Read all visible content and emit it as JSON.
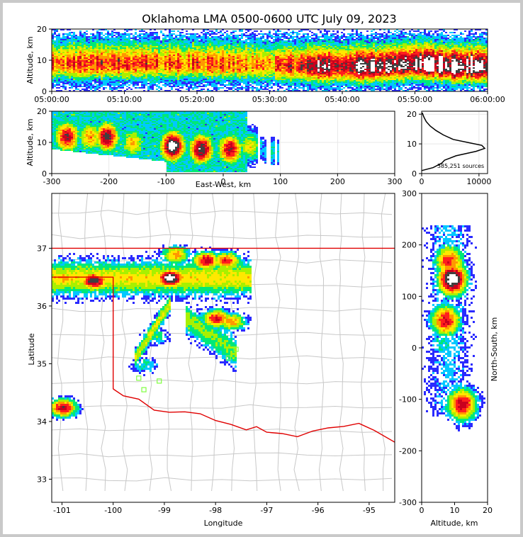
{
  "title": "Oklahoma LMA 0500-0600 UTC July 09, 2023",
  "colors": {
    "density": [
      "#6a00d8",
      "#2a2aff",
      "#00c8ff",
      "#00e878",
      "#a8f000",
      "#ffe800",
      "#ff9800",
      "#ff1e1e",
      "#c8001e",
      "#404040",
      "#ffffff"
    ],
    "border": "#e00000",
    "county": "#c8c8c8",
    "station": "#7fff3f"
  },
  "chart_data": [
    {
      "id": "time-height",
      "type": "heatmap",
      "xlabel": "",
      "ylabel": "Altitude, km",
      "xticks": [
        "05:00:00",
        "05:10:00",
        "05:20:00",
        "05:30:00",
        "05:40:00",
        "05:50:00",
        "06:00:00"
      ],
      "xlim_minutes": [
        0,
        60
      ],
      "yticks": [
        0,
        10,
        20
      ],
      "ylim": [
        0,
        20
      ],
      "density_profile": [
        {
          "t": 0,
          "center_km": 9,
          "intensity": 0.6
        },
        {
          "t": 10,
          "center_km": 9,
          "intensity": 0.65
        },
        {
          "t": 20,
          "center_km": 9,
          "intensity": 0.6
        },
        {
          "t": 30,
          "center_km": 8.5,
          "intensity": 0.55
        },
        {
          "t": 37,
          "center_km": 8,
          "intensity": 0.8
        },
        {
          "t": 45,
          "center_km": 8,
          "intensity": 0.85
        },
        {
          "t": 50,
          "center_km": 9,
          "intensity": 0.85
        },
        {
          "t": 55,
          "center_km": 8,
          "intensity": 0.95
        },
        {
          "t": 60,
          "center_km": 8,
          "intensity": 0.9
        }
      ]
    },
    {
      "id": "east-west-height",
      "type": "heatmap",
      "xlabel": "East-West, km",
      "ylabel": "Altitude, km",
      "xticks": [
        -300,
        -200,
        -100,
        0,
        100,
        200,
        300
      ],
      "xlim": [
        -300,
        300
      ],
      "yticks": [
        0,
        10,
        20
      ],
      "ylim": [
        0,
        20
      ],
      "cells": [
        {
          "x": -275,
          "z": 12,
          "intensity": 0.8
        },
        {
          "x": -235,
          "z": 12,
          "intensity": 0.6
        },
        {
          "x": -205,
          "z": 12,
          "intensity": 0.85
        },
        {
          "x": -160,
          "z": 10,
          "intensity": 0.55
        },
        {
          "x": -90,
          "z": 9,
          "intensity": 1.0
        },
        {
          "x": -40,
          "z": 8,
          "intensity": 0.9
        },
        {
          "x": 10,
          "z": 8,
          "intensity": 0.8
        },
        {
          "x": 45,
          "z": 9,
          "intensity": 0.5
        },
        {
          "x": 85,
          "z": 7,
          "intensity": 0.3
        }
      ]
    },
    {
      "id": "altitude-histogram",
      "type": "line",
      "xlabel": "",
      "ylabel": "",
      "xticks": [
        0,
        10000
      ],
      "xlim": [
        0,
        11500
      ],
      "yticks": [
        0,
        10,
        20
      ],
      "ylim": [
        0,
        21
      ],
      "annotation": "385,251 sources",
      "points": [
        [
          0,
          1
        ],
        [
          2000,
          2
        ],
        [
          3500,
          3.5
        ],
        [
          4000,
          4.5
        ],
        [
          6000,
          6
        ],
        [
          9500,
          7.5
        ],
        [
          11000,
          8.5
        ],
        [
          10500,
          9.5
        ],
        [
          8000,
          10.5
        ],
        [
          5500,
          11.5
        ],
        [
          3800,
          13
        ],
        [
          2500,
          14.5
        ],
        [
          1500,
          16
        ],
        [
          800,
          17.5
        ],
        [
          400,
          19
        ],
        [
          100,
          20.5
        ]
      ]
    },
    {
      "id": "plan-view",
      "type": "heatmap",
      "xlabel": "Longitude",
      "ylabel": "Latitude",
      "xticks": [
        -101,
        -100,
        -99,
        -98,
        -97,
        -96,
        -95
      ],
      "xlim": [
        -101.2,
        -94.5
      ],
      "yticks": [
        33,
        34,
        35,
        36,
        37
      ],
      "ylim": [
        32.6,
        37.95
      ],
      "cells": [
        {
          "lon": -100.4,
          "lat": 36.45,
          "intensity": 0.9
        },
        {
          "lon": -101.0,
          "lat": 36.5,
          "intensity": 0.6
        },
        {
          "lon": -99.7,
          "lat": 36.5,
          "intensity": 0.55
        },
        {
          "lon": -98.9,
          "lat": 36.5,
          "intensity": 1.0
        },
        {
          "lon": -98.2,
          "lat": 36.8,
          "intensity": 0.8
        },
        {
          "lon": -97.8,
          "lat": 36.8,
          "intensity": 0.7
        },
        {
          "lon": -98.8,
          "lat": 36.9,
          "intensity": 0.6
        },
        {
          "lon": -98.0,
          "lat": 35.8,
          "intensity": 0.75
        },
        {
          "lon": -97.7,
          "lat": 35.75,
          "intensity": 0.6
        },
        {
          "lon": -101.0,
          "lat": 34.25,
          "intensity": 0.8
        },
        {
          "lon": -99.2,
          "lat": 35.5,
          "intensity": 0.35
        },
        {
          "lon": -99.4,
          "lat": 35.0,
          "intensity": 0.3
        }
      ]
    },
    {
      "id": "north-south-height",
      "type": "heatmap",
      "xlabel": "Altitude, km",
      "ylabel": "North-South, km",
      "xticks": [
        0,
        10,
        20
      ],
      "xlim": [
        0,
        20
      ],
      "yticks": [
        -300,
        -200,
        -100,
        0,
        100,
        200,
        300
      ],
      "ylim": [
        -300,
        300
      ],
      "cells": [
        {
          "z": 9,
          "y": 135,
          "intensity": 1.0
        },
        {
          "z": 8,
          "y": 170,
          "intensity": 0.7
        },
        {
          "z": 7,
          "y": 55,
          "intensity": 0.75
        },
        {
          "z": 12,
          "y": -108,
          "intensity": 0.8
        },
        {
          "z": 6,
          "y": 10,
          "intensity": 0.3
        }
      ]
    }
  ]
}
